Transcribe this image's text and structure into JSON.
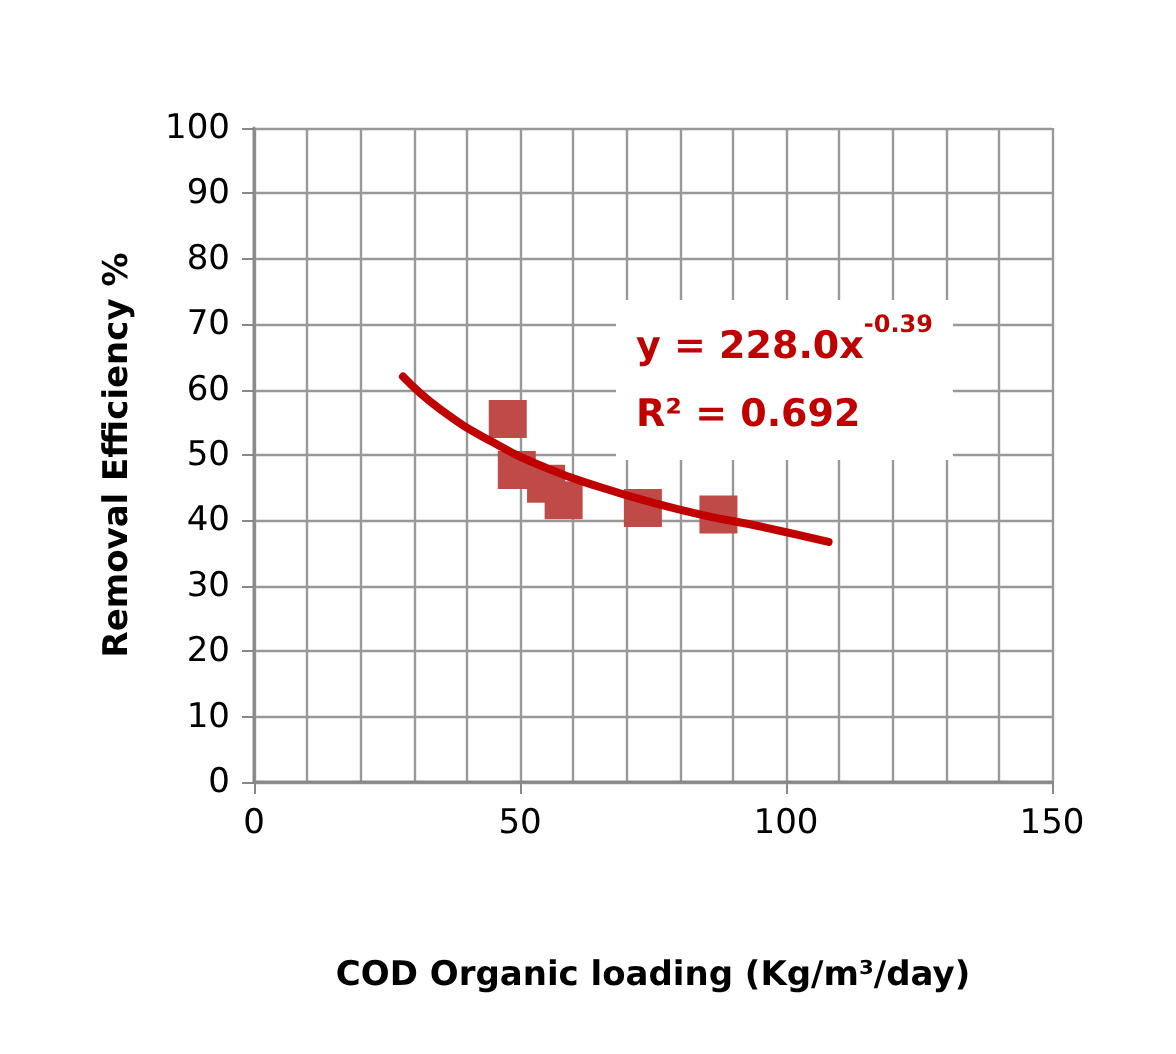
{
  "chart_data": {
    "type": "scatter",
    "xlabel": "COD Organic loading (Kg/m³/day)",
    "ylabel": "Removal Efficiency %",
    "series": [
      {
        "color": "#be4b48",
        "marker": "square",
        "x": [
          47.7,
          49.4,
          54.9,
          58.2,
          73.1,
          87.3
        ],
        "values": [
          55.5,
          47.7,
          45.6,
          43.1,
          41.9,
          40.9
        ]
      },
      {
        "type": "line",
        "color": "#c00000",
        "marker": "none",
        "x": [
          28,
          35,
          45,
          55,
          65,
          75,
          85,
          95,
          108
        ],
        "values": [
          62,
          57,
          51.9,
          48,
          45.1,
          42.7,
          40.7,
          39.1,
          36.7
        ]
      }
    ],
    "xlim": [
      0,
      150
    ],
    "xticks": [
      0,
      {
        "value": 10,
        "label": null
      },
      {
        "value": 20,
        "label": null
      },
      {
        "value": 30,
        "label": null
      },
      {
        "value": 40,
        "label": null
      },
      50,
      {
        "value": 60,
        "label": null
      },
      {
        "value": 70,
        "label": null
      },
      {
        "value": 80,
        "label": null
      },
      {
        "value": 90,
        "label": null
      },
      100,
      {
        "value": 110,
        "label": null
      },
      {
        "value": 120,
        "label": null
      },
      {
        "value": 130,
        "label": null
      },
      {
        "value": 140,
        "label": null
      },
      150
    ],
    "ylim": [
      0,
      100
    ],
    "yticks": [
      0,
      10,
      20,
      30,
      40,
      50,
      60,
      70,
      80,
      90,
      100
    ],
    "grid": true,
    "annotations": [
      "y = 228.0x$^{-0.39}$",
      "R² = 0.692"
    ]
  }
}
